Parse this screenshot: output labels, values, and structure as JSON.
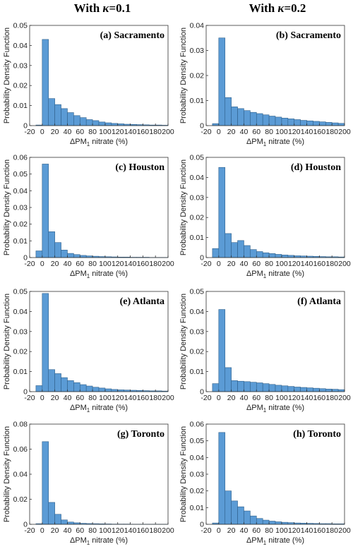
{
  "column_headers": {
    "left": {
      "prefix": "With ",
      "symbol": "κ",
      "suffix": "=0.1"
    },
    "right": {
      "prefix": "With ",
      "symbol": "κ",
      "suffix": "=0.2"
    }
  },
  "chart_data": [
    {
      "type": "bar",
      "title": "(a) Sacramento",
      "ylabel": "Probability Density Function",
      "xlabel": "ΔPM1 nitrate (%)",
      "xlim": [
        -20,
        200
      ],
      "ylim": [
        0,
        0.05
      ],
      "yticks": [
        0,
        0.01,
        0.02,
        0.03,
        0.04,
        0.05
      ],
      "ytick_labels": [
        "0",
        "0.01",
        "0.02",
        "0.03",
        "0.04",
        "0.05"
      ],
      "bin_width": 10,
      "bin_starts": [
        -10,
        0,
        10,
        20,
        30,
        40,
        50,
        60,
        70,
        80,
        90,
        100,
        110,
        120,
        130,
        140,
        150,
        160,
        170,
        180,
        190
      ],
      "values": [
        0.0003,
        0.043,
        0.0135,
        0.0105,
        0.0085,
        0.0065,
        0.005,
        0.004,
        0.003,
        0.0025,
        0.0018,
        0.0014,
        0.0011,
        0.0009,
        0.0007,
        0.0006,
        0.0005,
        0.0004,
        0.0003,
        0.0003,
        0.0002
      ]
    },
    {
      "type": "bar",
      "title": "(b) Sacramento",
      "ylabel": "Probability Density Function",
      "xlabel": "ΔPM1 nitrate (%)",
      "xlim": [
        -20,
        200
      ],
      "ylim": [
        0,
        0.04
      ],
      "yticks": [
        0,
        0.01,
        0.02,
        0.03,
        0.04
      ],
      "ytick_labels": [
        "0",
        "0.01",
        "0.02",
        "0.03",
        "0.04"
      ],
      "bin_width": 10,
      "bin_starts": [
        -10,
        0,
        10,
        20,
        30,
        40,
        50,
        60,
        70,
        80,
        90,
        100,
        110,
        120,
        130,
        140,
        150,
        160,
        170,
        180,
        190
      ],
      "values": [
        0.0008,
        0.035,
        0.0112,
        0.0075,
        0.0068,
        0.006,
        0.0053,
        0.0048,
        0.0043,
        0.0038,
        0.0034,
        0.003,
        0.0027,
        0.0024,
        0.0021,
        0.0019,
        0.0017,
        0.0015,
        0.0013,
        0.0011,
        0.0009
      ]
    },
    {
      "type": "bar",
      "title": "(c) Houston",
      "ylabel": "Probability Density Function",
      "xlabel": "ΔPM1 nitrate (%)",
      "xlim": [
        -20,
        200
      ],
      "ylim": [
        0,
        0.06
      ],
      "yticks": [
        0,
        0.01,
        0.02,
        0.03,
        0.04,
        0.05,
        0.06
      ],
      "ytick_labels": [
        "0",
        "0.01",
        "0.02",
        "0.03",
        "0.04",
        "0.05",
        "0.06"
      ],
      "bin_width": 10,
      "bin_starts": [
        -10,
        0,
        10,
        20,
        30,
        40,
        50,
        60,
        70,
        80,
        90,
        100,
        110,
        120,
        130,
        140,
        150,
        160,
        170,
        180,
        190
      ],
      "values": [
        0.004,
        0.056,
        0.0155,
        0.009,
        0.0045,
        0.0025,
        0.0018,
        0.0013,
        0.001,
        0.0008,
        0.0006,
        0.0005,
        0.0004,
        0.0003,
        0.0003,
        0.0002,
        0.0002,
        0.0002,
        0.0001,
        0.0001,
        0.0001
      ]
    },
    {
      "type": "bar",
      "title": "(d) Houston",
      "ylabel": "Probability Density Function",
      "xlabel": "ΔPM1 nitrate (%)",
      "xlim": [
        -20,
        200
      ],
      "ylim": [
        0,
        0.05
      ],
      "yticks": [
        0,
        0.01,
        0.02,
        0.03,
        0.04,
        0.05
      ],
      "ytick_labels": [
        "0",
        "0.01",
        "0.02",
        "0.03",
        "0.04",
        "0.05"
      ],
      "bin_width": 10,
      "bin_starts": [
        -10,
        0,
        10,
        20,
        30,
        40,
        50,
        60,
        70,
        80,
        90,
        100,
        110,
        120,
        130,
        140,
        150,
        160,
        170,
        180,
        190
      ],
      "values": [
        0.0045,
        0.045,
        0.012,
        0.0075,
        0.0085,
        0.006,
        0.004,
        0.003,
        0.0024,
        0.002,
        0.0016,
        0.0013,
        0.0011,
        0.0009,
        0.0008,
        0.0007,
        0.0006,
        0.0005,
        0.0004,
        0.0004,
        0.0003
      ]
    },
    {
      "type": "bar",
      "title": "(e) Atlanta",
      "ylabel": "Probability Density Function",
      "xlabel": "ΔPM1 nitrate (%)",
      "xlim": [
        -20,
        200
      ],
      "ylim": [
        0,
        0.05
      ],
      "yticks": [
        0,
        0.01,
        0.02,
        0.03,
        0.04,
        0.05
      ],
      "ytick_labels": [
        "0",
        "0.01",
        "0.02",
        "0.03",
        "0.04",
        "0.05"
      ],
      "bin_width": 10,
      "bin_starts": [
        -10,
        0,
        10,
        20,
        30,
        40,
        50,
        60,
        70,
        80,
        90,
        100,
        110,
        120,
        130,
        140,
        150,
        160,
        170,
        180,
        190
      ],
      "values": [
        0.003,
        0.049,
        0.011,
        0.009,
        0.007,
        0.0055,
        0.0045,
        0.0035,
        0.0028,
        0.0022,
        0.0018,
        0.0014,
        0.0011,
        0.0009,
        0.0008,
        0.0007,
        0.0006,
        0.0005,
        0.0004,
        0.0004,
        0.0003
      ]
    },
    {
      "type": "bar",
      "title": "(f) Atlanta",
      "ylabel": "Probability Density Function",
      "xlabel": "ΔPM1 nitrate (%)",
      "xlim": [
        -20,
        200
      ],
      "ylim": [
        0,
        0.05
      ],
      "yticks": [
        0,
        0.01,
        0.02,
        0.03,
        0.04,
        0.05
      ],
      "ytick_labels": [
        "0",
        "0.01",
        "0.02",
        "0.03",
        "0.04",
        "0.05"
      ],
      "bin_width": 10,
      "bin_starts": [
        -10,
        0,
        10,
        20,
        30,
        40,
        50,
        60,
        70,
        80,
        90,
        100,
        110,
        120,
        130,
        140,
        150,
        160,
        170,
        180,
        190
      ],
      "values": [
        0.004,
        0.041,
        0.012,
        0.0055,
        0.0052,
        0.005,
        0.0047,
        0.0044,
        0.004,
        0.0036,
        0.0032,
        0.0029,
        0.0026,
        0.0023,
        0.0021,
        0.0019,
        0.0017,
        0.0015,
        0.0013,
        0.0012,
        0.001
      ]
    },
    {
      "type": "bar",
      "title": "(g) Toronto",
      "ylabel": "Probability Density Function",
      "xlabel": "ΔPM1 nitrate (%)",
      "xlim": [
        -20,
        200
      ],
      "ylim": [
        0,
        0.08
      ],
      "yticks": [
        0,
        0.02,
        0.04,
        0.06,
        0.08
      ],
      "ytick_labels": [
        "0",
        "0.02",
        "0.04",
        "0.06",
        "0.08"
      ],
      "bin_width": 10,
      "bin_starts": [
        -10,
        0,
        10,
        20,
        30,
        40,
        50,
        60,
        70,
        80,
        90,
        100,
        110,
        120,
        130,
        140,
        150,
        160,
        170,
        180,
        190
      ],
      "values": [
        0.0005,
        0.066,
        0.0175,
        0.008,
        0.0035,
        0.0018,
        0.0012,
        0.0008,
        0.0006,
        0.0005,
        0.0004,
        0.0003,
        0.0002,
        0.0002,
        0.0002,
        0.0001,
        0.0001,
        0.0001,
        0.0001,
        0.0001,
        0.0001
      ]
    },
    {
      "type": "bar",
      "title": "(h) Toronto",
      "ylabel": "Probability Density Function",
      "xlabel": "ΔPM1 nitrate (%)",
      "xlim": [
        -20,
        200
      ],
      "ylim": [
        0,
        0.06
      ],
      "yticks": [
        0,
        0.01,
        0.02,
        0.03,
        0.04,
        0.05,
        0.06
      ],
      "ytick_labels": [
        "0",
        "0.01",
        "0.02",
        "0.03",
        "0.04",
        "0.05",
        "0.06"
      ],
      "bin_width": 10,
      "bin_starts": [
        -10,
        0,
        10,
        20,
        30,
        40,
        50,
        60,
        70,
        80,
        90,
        100,
        110,
        120,
        130,
        140,
        150,
        160,
        170,
        180,
        190
      ],
      "values": [
        0.0008,
        0.055,
        0.02,
        0.014,
        0.0105,
        0.008,
        0.005,
        0.0035,
        0.0025,
        0.0019,
        0.0015,
        0.0012,
        0.001,
        0.0008,
        0.0007,
        0.0006,
        0.0005,
        0.0004,
        0.0004,
        0.0003,
        0.0003
      ]
    }
  ],
  "xticks": [
    -20,
    0,
    20,
    40,
    60,
    80,
    100,
    120,
    140,
    160,
    180,
    200
  ],
  "xtick_labels": [
    "-20",
    "0",
    "20",
    "40",
    "60",
    "80",
    "100",
    "120",
    "140",
    "160",
    "180",
    "200"
  ]
}
